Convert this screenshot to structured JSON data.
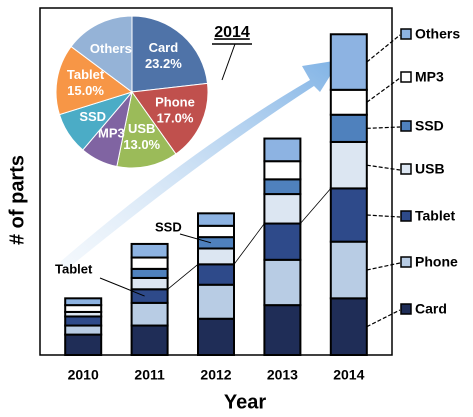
{
  "chart_data": [
    {
      "type": "bar",
      "stacked": true,
      "x_label": "Year",
      "y_label": "# of parts",
      "categories": [
        "2010",
        "2011",
        "2012",
        "2013",
        "2014"
      ],
      "series": [
        {
          "name": "Card",
          "color": "#1f2d57",
          "values": [
            18,
            26,
            32,
            44,
            50
          ]
        },
        {
          "name": "Phone",
          "color": "#b8cce4",
          "values": [
            8,
            20,
            30,
            40,
            50
          ]
        },
        {
          "name": "Tablet",
          "color": "#2e4a8a",
          "values": [
            8,
            12,
            18,
            32,
            47
          ]
        },
        {
          "name": "USB",
          "color": "#dce6f2",
          "values": [
            4,
            10,
            14,
            26,
            41
          ]
        },
        {
          "name": "SSD",
          "color": "#4f81bd",
          "values": [
            0,
            8,
            10,
            13,
            24
          ]
        },
        {
          "name": "MP3",
          "color": "#ffffff",
          "values": [
            6,
            10,
            10,
            16,
            22
          ]
        },
        {
          "name": "Others",
          "color": "#8db3e2",
          "values": [
            6,
            12,
            11,
            20,
            49
          ]
        }
      ],
      "ylim": [
        0,
        300
      ],
      "annotations": [
        "Tablet",
        "SSD"
      ]
    },
    {
      "type": "pie",
      "title": "2014",
      "categories": [
        "Card",
        "Phone",
        "USB",
        "MP3",
        "SSD",
        "Tablet",
        "Others"
      ],
      "values": [
        23.2,
        17.0,
        13.0,
        8,
        9,
        15.0,
        14.8
      ],
      "value_labels": [
        "23.2%",
        "17.0%",
        "13.0%",
        null,
        null,
        "15.0%",
        null
      ],
      "colors": [
        "#4f73a8",
        "#c0504d",
        "#9bbb59",
        "#8064a2",
        "#4bacc6",
        "#f79646",
        "#95b3d7"
      ]
    }
  ]
}
